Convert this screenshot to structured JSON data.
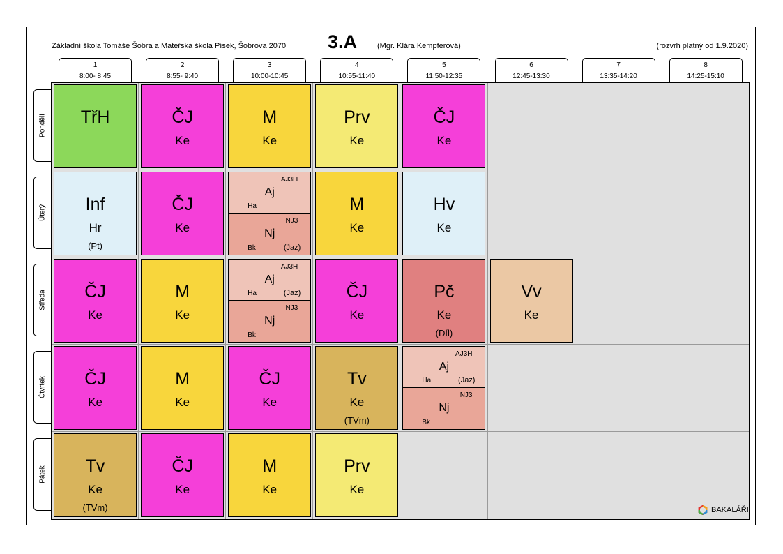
{
  "header": {
    "school": "Základní škola Tomáše Šobra a Mateřská škola Písek, Šobrova 2070",
    "class_name": "3.A",
    "teacher": "(Mgr. Klára Kempferová)",
    "validity": "(rozvrh platný od 1.9.2020)"
  },
  "periods": [
    {
      "num": "1",
      "time": "8:00- 8:45"
    },
    {
      "num": "2",
      "time": "8:55- 9:40"
    },
    {
      "num": "3",
      "time": "10:00-10:45"
    },
    {
      "num": "4",
      "time": "10:55-11:40"
    },
    {
      "num": "5",
      "time": "11:50-12:35"
    },
    {
      "num": "6",
      "time": "12:45-13:30"
    },
    {
      "num": "7",
      "time": "13:35-14:20"
    },
    {
      "num": "8",
      "time": "14:25-15:10"
    }
  ],
  "days": [
    "Pondělí",
    "Úterý",
    "Středa",
    "Čtvrtek",
    "Pátek"
  ],
  "colors": {
    "grid_background": "#e0e0e0",
    "TrH": "#8cd85a",
    "CJ": "#f53fd9",
    "M": "#f8d63c",
    "Prv": "#f4ea74",
    "Inf": "#dff0f8",
    "Hv": "#dff0f8",
    "Pc": "#e08080",
    "Vv": "#ebc8a4",
    "Tv": "#d8b45c",
    "Aj": "#efc4b8",
    "Nj": "#e9a698"
  },
  "schedule": [
    [
      {
        "subject": "TřH",
        "teacher": "",
        "color": "#8cd85a"
      },
      {
        "subject": "ČJ",
        "teacher": "Ke",
        "color": "#f53fd9"
      },
      {
        "subject": "M",
        "teacher": "Ke",
        "color": "#f8d63c"
      },
      {
        "subject": "Prv",
        "teacher": "Ke",
        "color": "#f4ea74"
      },
      {
        "subject": "ČJ",
        "teacher": "Ke",
        "color": "#f53fd9"
      },
      null,
      null,
      null
    ],
    [
      {
        "subject": "Inf",
        "teacher": "Hr",
        "room": "(Pt)",
        "color": "#dff0f8"
      },
      {
        "subject": "ČJ",
        "teacher": "Ke",
        "color": "#f53fd9"
      },
      {
        "split": [
          {
            "subject": "Aj",
            "group": "AJ3H",
            "teacher": "Ha",
            "room": "",
            "color": "#efc4b8"
          },
          {
            "subject": "Nj",
            "group": "NJ3",
            "teacher": "Bk",
            "room": "(Jaz)",
            "color": "#e9a698"
          }
        ]
      },
      {
        "subject": "M",
        "teacher": "Ke",
        "color": "#f8d63c"
      },
      {
        "subject": "Hv",
        "teacher": "Ke",
        "color": "#dff0f8"
      },
      null,
      null,
      null
    ],
    [
      {
        "subject": "ČJ",
        "teacher": "Ke",
        "color": "#f53fd9"
      },
      {
        "subject": "M",
        "teacher": "Ke",
        "color": "#f8d63c"
      },
      {
        "split": [
          {
            "subject": "Aj",
            "group": "AJ3H",
            "teacher": "Ha",
            "room": "(Jaz)",
            "color": "#efc4b8"
          },
          {
            "subject": "Nj",
            "group": "NJ3",
            "teacher": "Bk",
            "room": "",
            "color": "#e9a698"
          }
        ]
      },
      {
        "subject": "ČJ",
        "teacher": "Ke",
        "color": "#f53fd9"
      },
      {
        "subject": "Pč",
        "teacher": "Ke",
        "room": "(Díl)",
        "color": "#e08080"
      },
      {
        "subject": "Vv",
        "teacher": "Ke",
        "color": "#ebc8a4"
      },
      null,
      null
    ],
    [
      {
        "subject": "ČJ",
        "teacher": "Ke",
        "color": "#f53fd9"
      },
      {
        "subject": "M",
        "teacher": "Ke",
        "color": "#f8d63c"
      },
      {
        "subject": "ČJ",
        "teacher": "Ke",
        "color": "#f53fd9"
      },
      {
        "subject": "Tv",
        "teacher": "Ke",
        "room": "(TVm)",
        "color": "#d8b45c"
      },
      {
        "split": [
          {
            "subject": "Aj",
            "group": "AJ3H",
            "teacher": "Ha",
            "room": "(Jaz)",
            "color": "#efc4b8"
          },
          {
            "subject": "Nj",
            "group": "NJ3",
            "teacher": "Bk",
            "room": "",
            "color": "#e9a698"
          }
        ]
      },
      null,
      null,
      null
    ],
    [
      {
        "subject": "Tv",
        "teacher": "Ke",
        "room": "(TVm)",
        "color": "#d8b45c"
      },
      {
        "subject": "ČJ",
        "teacher": "Ke",
        "color": "#f53fd9"
      },
      {
        "subject": "M",
        "teacher": "Ke",
        "color": "#f8d63c"
      },
      {
        "subject": "Prv",
        "teacher": "Ke",
        "color": "#f4ea74"
      },
      null,
      null,
      null,
      null
    ]
  ],
  "footer": {
    "logo_text": "BAKALÁŘI",
    "logo_icon": "bakalari-hexagon-icon"
  }
}
